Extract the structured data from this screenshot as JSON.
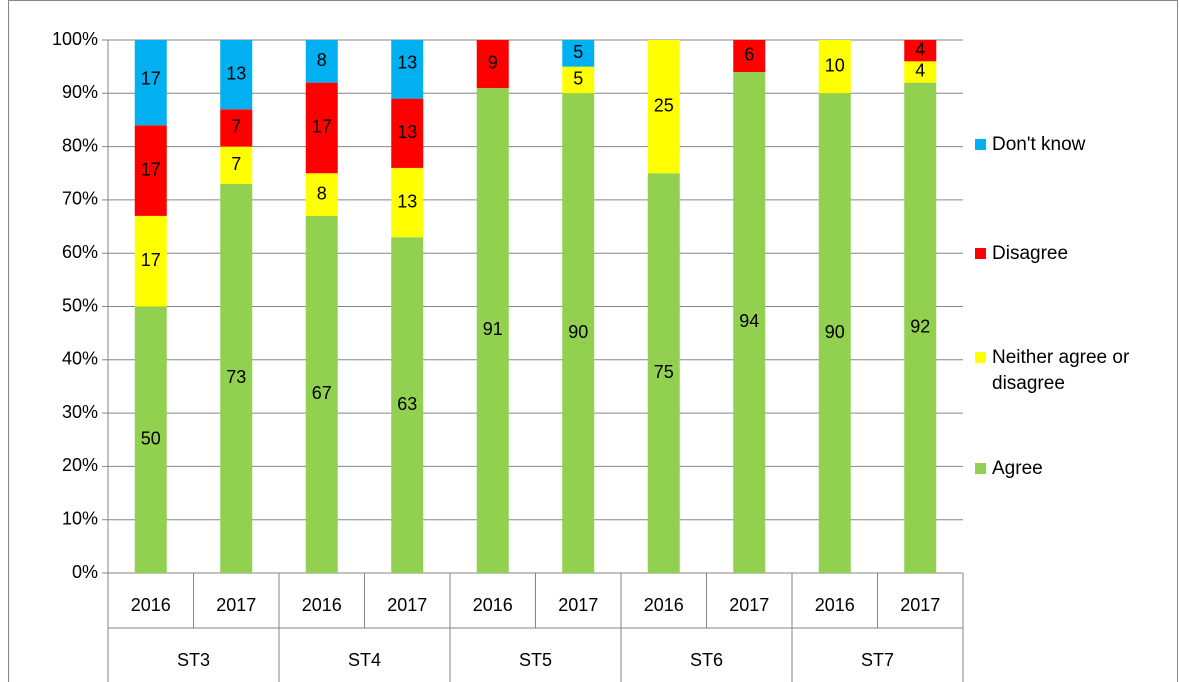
{
  "chart_data": {
    "type": "stacked_bar",
    "categories": [
      "2016",
      "2017",
      "2016",
      "2017",
      "2016",
      "2017",
      "2016",
      "2017",
      "2016",
      "2017"
    ],
    "groups": [
      "ST3",
      "ST4",
      "ST5",
      "ST6",
      "ST7"
    ],
    "series": [
      {
        "name": "Agree",
        "color": "#92d050",
        "values": [
          50,
          73,
          67,
          63,
          91,
          90,
          75,
          94,
          90,
          92
        ]
      },
      {
        "name": "Neither agree or disagree",
        "color": "#ffff00",
        "values": [
          17,
          7,
          8,
          13,
          null,
          5,
          25,
          null,
          10,
          4
        ]
      },
      {
        "name": "Disagree",
        "color": "#ff0000",
        "values": [
          17,
          7,
          17,
          13,
          9,
          null,
          null,
          6,
          null,
          4
        ]
      },
      {
        "name": "Don't know",
        "color": "#00b0f0",
        "values": [
          17,
          13,
          8,
          13,
          null,
          5,
          null,
          null,
          null,
          null
        ]
      }
    ],
    "ylim": [
      0,
      100
    ],
    "yticks": [
      {
        "value": 0,
        "label": "0%"
      },
      {
        "value": 10,
        "label": "10%"
      },
      {
        "value": 20,
        "label": "20%"
      },
      {
        "value": 30,
        "label": "30%"
      },
      {
        "value": 40,
        "label": "40%"
      },
      {
        "value": 50,
        "label": "50%"
      },
      {
        "value": 60,
        "label": "60%"
      },
      {
        "value": 70,
        "label": "70%"
      },
      {
        "value": 80,
        "label": "80%"
      },
      {
        "value": 90,
        "label": "90%"
      },
      {
        "value": 100,
        "label": "100%"
      }
    ],
    "grid": true,
    "legend": "right"
  }
}
